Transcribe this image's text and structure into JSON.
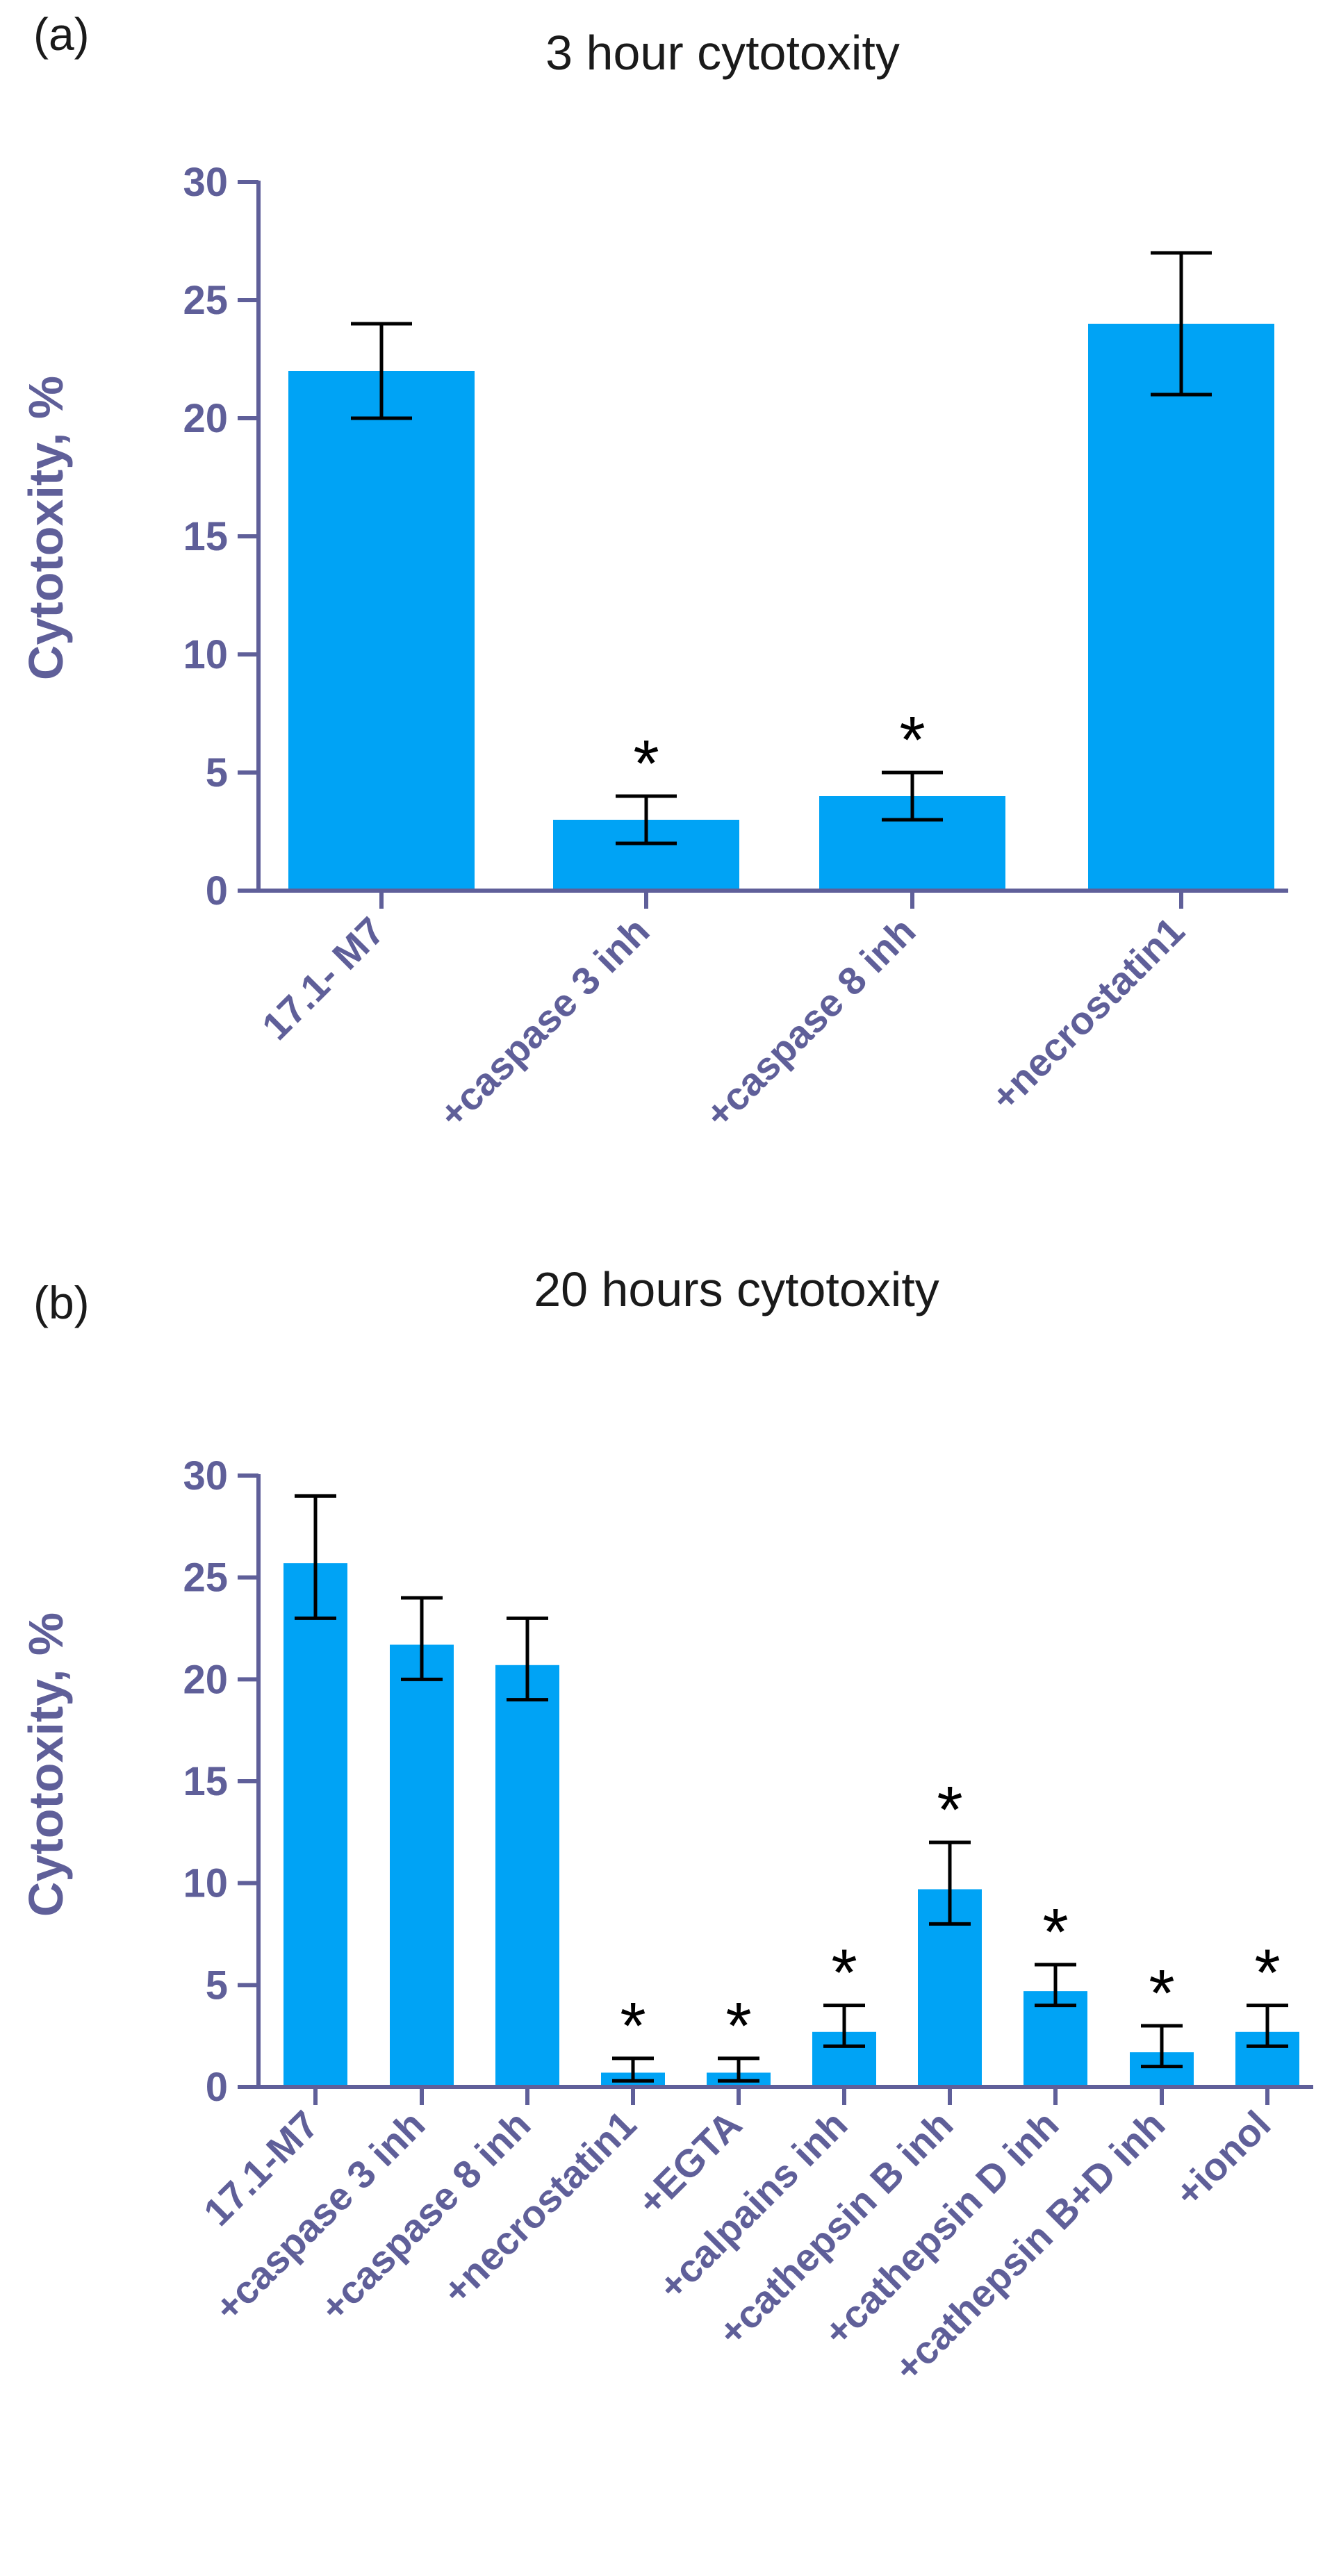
{
  "colors": {
    "bar": "#00a3f5",
    "axis": "#5f5f99",
    "error": "#000000"
  },
  "chart_data": [
    {
      "type": "bar",
      "panel_label": "(a)",
      "title": "3 hour cytotoxity",
      "xlabel": "",
      "ylabel": "Cytotoxity, %",
      "ylim": [
        0,
        30
      ],
      "yticks": [
        0,
        5,
        10,
        15,
        20,
        25,
        30
      ],
      "categories": [
        "17.1- M7",
        "+caspase 3 inh",
        "+caspase 8 inh",
        "+necrostatin1"
      ],
      "values": [
        22,
        3,
        4,
        24
      ],
      "error_low": [
        20,
        2,
        3,
        21
      ],
      "error_high": [
        24,
        4,
        5,
        27
      ],
      "significance": [
        "",
        "*",
        "*",
        ""
      ]
    },
    {
      "type": "bar",
      "panel_label": "(b)",
      "title": "20 hours cytotoxity",
      "xlabel": "",
      "ylabel": "Cytotoxity, %",
      "ylim": [
        0,
        30
      ],
      "yticks": [
        0,
        5,
        10,
        15,
        20,
        25,
        30
      ],
      "categories": [
        "17.1-M7",
        "+caspase 3 inh",
        "+caspase 8 inh",
        "+necrostatin1",
        "+EGTA",
        "+calpains inh",
        "+cathepsin B inh",
        "+cathepsin D inh",
        "+cathepsin B+D inh",
        "+ionol"
      ],
      "values": [
        25.7,
        21.7,
        20.7,
        0.7,
        0.7,
        2.7,
        9.7,
        4.7,
        1.7,
        2.7
      ],
      "error_low": [
        23,
        20,
        19,
        0.3,
        0.3,
        2,
        8,
        4,
        1,
        2
      ],
      "error_high": [
        29,
        24,
        23,
        1.4,
        1.4,
        4,
        12,
        6,
        3,
        4
      ],
      "significance": [
        "",
        "",
        "",
        "*",
        "*",
        "*",
        "*",
        "*",
        "*",
        "*"
      ]
    }
  ]
}
